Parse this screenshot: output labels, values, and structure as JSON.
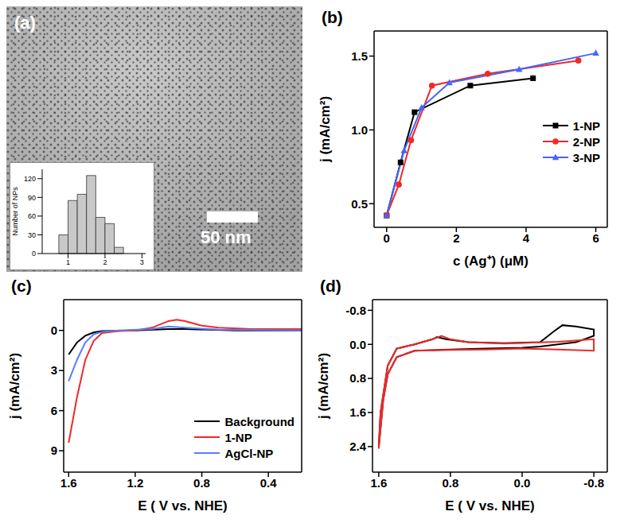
{
  "chart_data": [
    {
      "type": "histogram",
      "title": "(a)",
      "annotations": [
        "50 nm"
      ],
      "ylabel": "Number of NPs",
      "bins": [
        0.75,
        1.0,
        1.25,
        1.5,
        1.75,
        2.0,
        2.25,
        2.5
      ],
      "counts": [
        30,
        85,
        95,
        125,
        58,
        48,
        10
      ],
      "color": "#c8c8c8",
      "xlim": [
        0.3,
        3.1
      ],
      "xticks": [
        1,
        2,
        3
      ],
      "ylim": [
        0,
        135
      ],
      "yticks": [
        0,
        30,
        60,
        90,
        120
      ]
    },
    {
      "type": "line",
      "title": "(b)",
      "xlabel": "c (Ag⁺) (μM)",
      "ylabel": "j (mA/cm²)",
      "legend": "right",
      "xlim": [
        -0.36,
        6.33
      ],
      "xticks": [
        0,
        2,
        4,
        6
      ],
      "ylim": [
        0.34,
        1.67
      ],
      "yticks": [
        0.5,
        {
          "value": 1,
          "label": "1.0"
        },
        1.5
      ],
      "series": [
        {
          "name": "1-NP",
          "color": "#000000",
          "marker": "square",
          "x": [
            0,
            0.4,
            0.8,
            2.4,
            4.2
          ],
          "values": [
            0.42,
            0.78,
            1.12,
            1.3,
            1.35
          ]
        },
        {
          "name": "2-NP",
          "color": "#f02828",
          "marker": "circle",
          "x": [
            0,
            0.35,
            0.7,
            1.3,
            2.9,
            5.5
          ],
          "values": [
            0.42,
            0.63,
            0.93,
            1.3,
            1.38,
            1.47
          ]
        },
        {
          "name": "3-NP",
          "color": "#4466ff",
          "marker": "triangle",
          "x": [
            0,
            0.5,
            1.0,
            1.8,
            3.8,
            6.0
          ],
          "values": [
            0.42,
            0.86,
            1.15,
            1.32,
            1.41,
            1.52
          ]
        }
      ]
    },
    {
      "type": "line",
      "title": "(c)",
      "xlabel": "E ( V vs. NHE)",
      "ylabel": "j (mA/cm²)",
      "legend": "lower right",
      "xlim": [
        1.63,
        0.2
      ],
      "xticks": [
        1.6,
        1.2,
        0.8,
        0.4
      ],
      "ylim": [
        10.6,
        -2.3
      ],
      "yticks": [
        0,
        3,
        6,
        9
      ],
      "series": [
        {
          "name": "Background",
          "color": "#000000",
          "x": [
            1.6,
            1.55,
            1.5,
            1.45,
            1.4,
            1.2,
            1.0,
            0.9,
            0.6,
            0.2
          ],
          "values": [
            1.8,
            0.9,
            0.4,
            0.15,
            0.05,
            0,
            -0.1,
            -0.1,
            0,
            0
          ]
        },
        {
          "name": "1-NP",
          "color": "#f02828",
          "x": [
            1.6,
            1.55,
            1.5,
            1.45,
            1.4,
            1.3,
            1.2,
            1.1,
            1.0,
            0.95,
            0.9,
            0.8,
            0.7,
            0.5,
            0.2
          ],
          "values": [
            8.4,
            5.0,
            2.2,
            0.8,
            0.2,
            0.05,
            0,
            -0.2,
            -0.7,
            -0.8,
            -0.7,
            -0.35,
            -0.2,
            -0.1,
            -0.1
          ]
        },
        {
          "name": "AgCl-NP",
          "color": "#5a7dff",
          "x": [
            1.6,
            1.55,
            1.5,
            1.45,
            1.4,
            1.3,
            1.1,
            1.0,
            0.9,
            0.7,
            0.2
          ],
          "values": [
            3.8,
            2.2,
            0.9,
            0.3,
            0.1,
            0,
            -0.1,
            -0.3,
            -0.2,
            -0.05,
            0
          ]
        }
      ]
    },
    {
      "type": "line",
      "title": "(d)",
      "xlabel": "E ( V vs. NHE)",
      "ylabel": "j (mA/cm²)",
      "xlim": [
        1.67,
        -0.95
      ],
      "xticks": [
        1.6,
        0.8,
        {
          "value": 0,
          "label": "0.0"
        },
        -0.8
      ],
      "ylim": [
        3.0,
        -1.05
      ],
      "yticks": [
        -0.8,
        {
          "value": 0,
          "label": "0.0"
        },
        0.8,
        1.6,
        2.4
      ],
      "series": [
        {
          "color": "#000000",
          "x": [
            0.0,
            0.4,
            0.8,
            1.2,
            1.4,
            1.5,
            1.55,
            1.6,
            1.58,
            1.5,
            1.4,
            1.2,
            1.0,
            0.95,
            0.85,
            0.6,
            0.2,
            -0.2,
            -0.35,
            -0.45,
            -0.6,
            -0.8,
            -0.8,
            -0.6,
            -0.4,
            -0.2,
            0.0
          ],
          "values": [
            0.08,
            0.1,
            0.12,
            0.15,
            0.3,
            0.7,
            1.3,
            2.4,
            1.6,
            0.5,
            0.1,
            0.0,
            -0.12,
            -0.17,
            -0.12,
            -0.05,
            -0.03,
            -0.05,
            -0.3,
            -0.45,
            -0.42,
            -0.35,
            -0.2,
            -0.05,
            0.0,
            0.05,
            0.08
          ]
        },
        {
          "color": "#f02828",
          "x": [
            0.0,
            0.4,
            0.8,
            1.2,
            1.4,
            1.5,
            1.55,
            1.6,
            1.58,
            1.5,
            1.4,
            1.2,
            1.0,
            0.9,
            0.8,
            0.6,
            0.2,
            -0.4,
            -0.8,
            -0.8,
            -0.4,
            0.0
          ],
          "values": [
            0.1,
            0.12,
            0.13,
            0.15,
            0.3,
            0.7,
            1.3,
            2.45,
            1.6,
            0.5,
            0.1,
            0.0,
            -0.12,
            -0.2,
            -0.12,
            -0.05,
            -0.02,
            -0.06,
            -0.12,
            0.15,
            0.12,
            0.1
          ]
        }
      ]
    }
  ]
}
